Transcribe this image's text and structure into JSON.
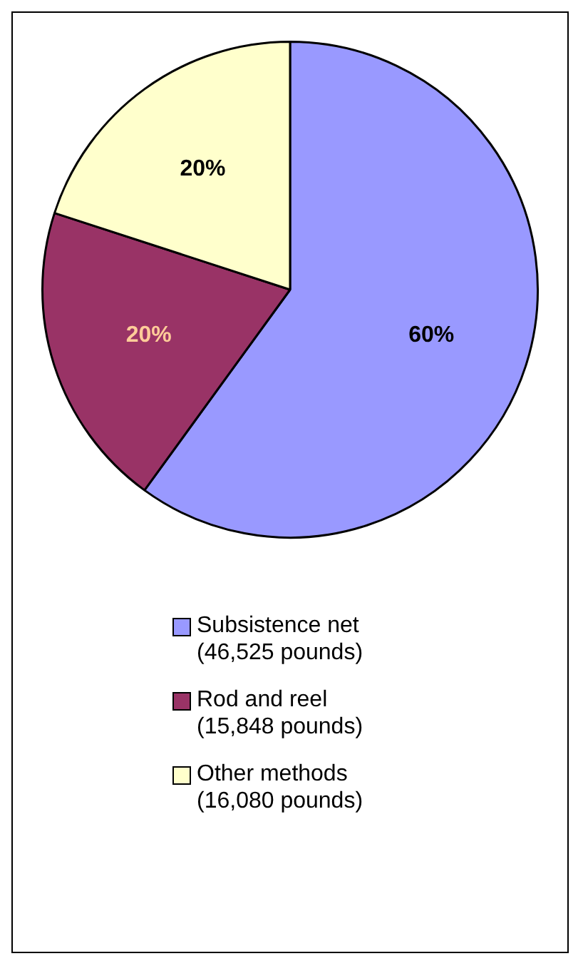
{
  "chart_data": {
    "type": "pie",
    "categories": [
      "Subsistence net\n(46,525 pounds)",
      "Rod and reel\n(15,848 pounds)",
      "Other methods\n(16,080 pounds)"
    ],
    "values": [
      60,
      20,
      20
    ],
    "colors": [
      "#9999ff",
      "#993366",
      "#ffffcc"
    ],
    "value_labels": [
      "60%",
      "20%",
      "20%"
    ],
    "legend": "bottom"
  }
}
